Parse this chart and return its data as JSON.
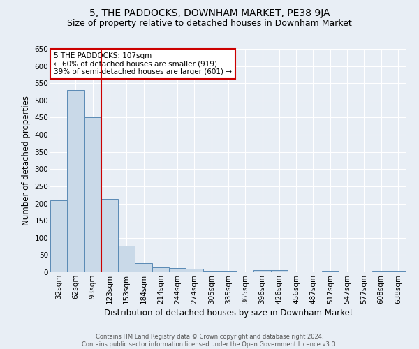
{
  "title": "5, THE PADDOCKS, DOWNHAM MARKET, PE38 9JA",
  "subtitle": "Size of property relative to detached houses in Downham Market",
  "xlabel": "Distribution of detached houses by size in Downham Market",
  "ylabel": "Number of detached properties",
  "footer_line1": "Contains HM Land Registry data © Crown copyright and database right 2024.",
  "footer_line2": "Contains public sector information licensed under the Open Government Licence v3.0.",
  "categories": [
    "32sqm",
    "62sqm",
    "93sqm",
    "123sqm",
    "153sqm",
    "184sqm",
    "214sqm",
    "244sqm",
    "274sqm",
    "305sqm",
    "335sqm",
    "365sqm",
    "396sqm",
    "426sqm",
    "456sqm",
    "487sqm",
    "517sqm",
    "547sqm",
    "577sqm",
    "608sqm",
    "638sqm"
  ],
  "values": [
    210,
    530,
    450,
    213,
    78,
    27,
    15,
    13,
    10,
    5,
    5,
    0,
    7,
    7,
    0,
    0,
    5,
    0,
    0,
    5,
    5
  ],
  "bar_color": "#c9d9e8",
  "bar_edge_color": "#5a8ab5",
  "red_line_x": 2.5,
  "red_line_color": "#cc0000",
  "annotation_text": "5 THE PADDOCKS: 107sqm\n← 60% of detached houses are smaller (919)\n39% of semi-detached houses are larger (601) →",
  "annotation_box_color": "#ffffff",
  "annotation_box_edge": "#cc0000",
  "ylim": [
    0,
    650
  ],
  "yticks": [
    0,
    50,
    100,
    150,
    200,
    250,
    300,
    350,
    400,
    450,
    500,
    550,
    600,
    650
  ],
  "background_color": "#e8eef5",
  "plot_bg_color": "#e8eef5",
  "title_fontsize": 10,
  "subtitle_fontsize": 9,
  "axis_label_fontsize": 8.5,
  "tick_fontsize": 7.5,
  "annotation_fontsize": 7.5,
  "footer_fontsize": 6.0
}
